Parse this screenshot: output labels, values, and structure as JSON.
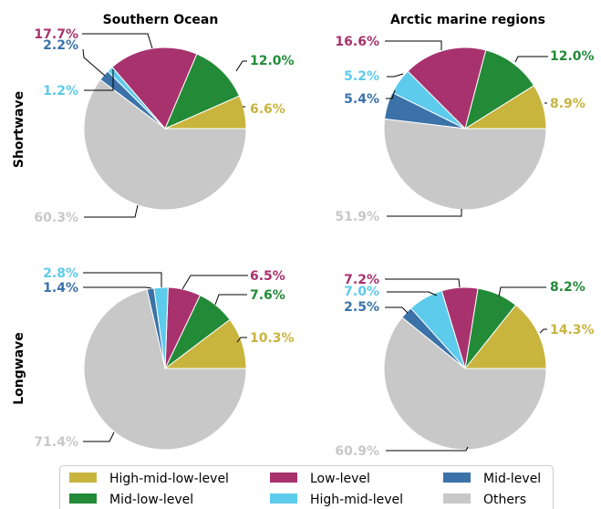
{
  "colors": {
    "High-mid-low-level": "#c9b43e",
    "Mid-low-level": "#238a38",
    "Low-level": "#a8326e",
    "High-mid-level": "#5dcbeb",
    "Mid-level": "#3b72a8",
    "Others": "#c8c8c8"
  },
  "legend": {
    "items": [
      "High-mid-low-level",
      "Low-level",
      "Mid-level",
      "Mid-low-level",
      "High-mid-level",
      "Others"
    ]
  },
  "columns": [
    "Southern Ocean",
    "Arctic marine regions"
  ],
  "rows": [
    "Shortwave",
    "Longwave"
  ],
  "chart_data": [
    {
      "type": "pie",
      "title": "Southern Ocean",
      "row": "Shortwave",
      "slices": [
        {
          "label": "High-mid-low-level",
          "value": 6.6,
          "text": "6.6%"
        },
        {
          "label": "Mid-low-level",
          "value": 12.0,
          "text": "12.0%"
        },
        {
          "label": "Low-level",
          "value": 17.7,
          "text": "17.7%"
        },
        {
          "label": "High-mid-level",
          "value": 1.2,
          "text": "1.2%"
        },
        {
          "label": "Mid-level",
          "value": 2.2,
          "text": "2.2%"
        },
        {
          "label": "Others",
          "value": 60.3,
          "text": "60.3%"
        }
      ]
    },
    {
      "type": "pie",
      "title": "Arctic marine regions",
      "row": "Shortwave",
      "slices": [
        {
          "label": "High-mid-low-level",
          "value": 8.9,
          "text": "8.9%"
        },
        {
          "label": "Mid-low-level",
          "value": 12.0,
          "text": "12.0%"
        },
        {
          "label": "Low-level",
          "value": 16.6,
          "text": "16.6%"
        },
        {
          "label": "High-mid-level",
          "value": 5.2,
          "text": "5.2%"
        },
        {
          "label": "Mid-level",
          "value": 5.4,
          "text": "5.4%"
        },
        {
          "label": "Others",
          "value": 51.9,
          "text": "51.9%"
        }
      ]
    },
    {
      "type": "pie",
      "title": "Southern Ocean",
      "row": "Longwave",
      "slices": [
        {
          "label": "High-mid-low-level",
          "value": 10.3,
          "text": "10.3%"
        },
        {
          "label": "Mid-low-level",
          "value": 7.6,
          "text": "7.6%"
        },
        {
          "label": "Low-level",
          "value": 6.5,
          "text": "6.5%"
        },
        {
          "label": "High-mid-level",
          "value": 2.8,
          "text": "2.8%"
        },
        {
          "label": "Mid-level",
          "value": 1.4,
          "text": "1.4%"
        },
        {
          "label": "Others",
          "value": 71.4,
          "text": "71.4%"
        }
      ]
    },
    {
      "type": "pie",
      "title": "Arctic marine regions",
      "row": "Longwave",
      "slices": [
        {
          "label": "High-mid-low-level",
          "value": 14.3,
          "text": "14.3%"
        },
        {
          "label": "Mid-low-level",
          "value": 8.2,
          "text": "8.2%"
        },
        {
          "label": "Low-level",
          "value": 7.2,
          "text": "7.2%"
        },
        {
          "label": "High-mid-level",
          "value": 7.0,
          "text": "7.0%"
        },
        {
          "label": "Mid-level",
          "value": 2.5,
          "text": "2.5%"
        },
        {
          "label": "Others",
          "value": 60.9,
          "text": "60.9%"
        }
      ]
    }
  ]
}
